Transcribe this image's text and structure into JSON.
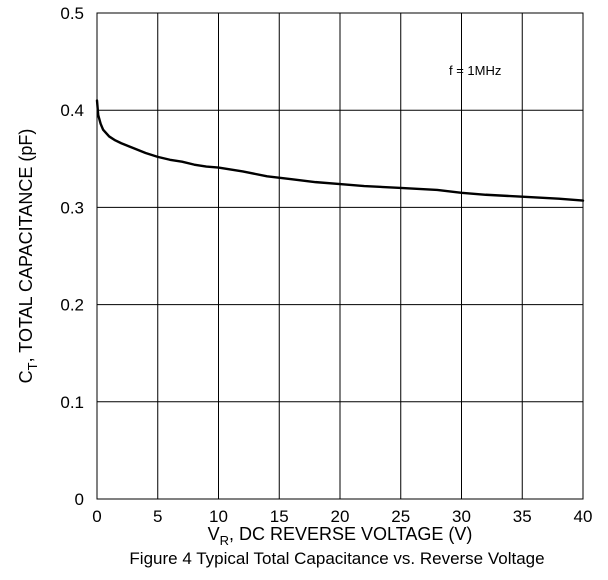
{
  "chart_data": {
    "type": "line",
    "title": "",
    "caption": "Figure 4 Typical Total Capacitance vs. Reverse Voltage",
    "xlabel": {
      "main": "V",
      "sub": "R",
      "rest": ", DC REVERSE VOLTAGE (V)"
    },
    "ylabel": {
      "main": "C",
      "sub": "T",
      "rest": ", TOTAL CAPACITANCE (pF)"
    },
    "xlim": [
      0,
      40
    ],
    "ylim": [
      0,
      0.5
    ],
    "xticks": [
      0,
      5,
      10,
      15,
      20,
      25,
      30,
      35,
      40
    ],
    "yticks": [
      0,
      0.1,
      0.2,
      0.3,
      0.4,
      0.5
    ],
    "xtick_labels": [
      "0",
      "5",
      "10",
      "15",
      "20",
      "25",
      "30",
      "35",
      "40"
    ],
    "ytick_labels": [
      "0",
      "0.1",
      "0.2",
      "0.3",
      "0.4",
      "0.5"
    ],
    "grid": true,
    "annotation": "f = 1MHz",
    "series": [
      {
        "color": "#000000",
        "x": [
          0,
          0.1,
          0.3,
          0.5,
          1,
          1.5,
          2,
          3,
          4,
          5,
          6,
          7,
          8,
          9,
          10,
          12,
          14,
          16,
          18,
          20,
          22,
          25,
          28,
          30,
          32,
          35,
          38,
          40
        ],
        "y": [
          0.41,
          0.395,
          0.386,
          0.38,
          0.373,
          0.369,
          0.366,
          0.361,
          0.356,
          0.352,
          0.349,
          0.347,
          0.344,
          0.342,
          0.341,
          0.337,
          0.332,
          0.329,
          0.326,
          0.324,
          0.322,
          0.32,
          0.318,
          0.315,
          0.313,
          0.311,
          0.309,
          0.307
        ]
      }
    ]
  }
}
